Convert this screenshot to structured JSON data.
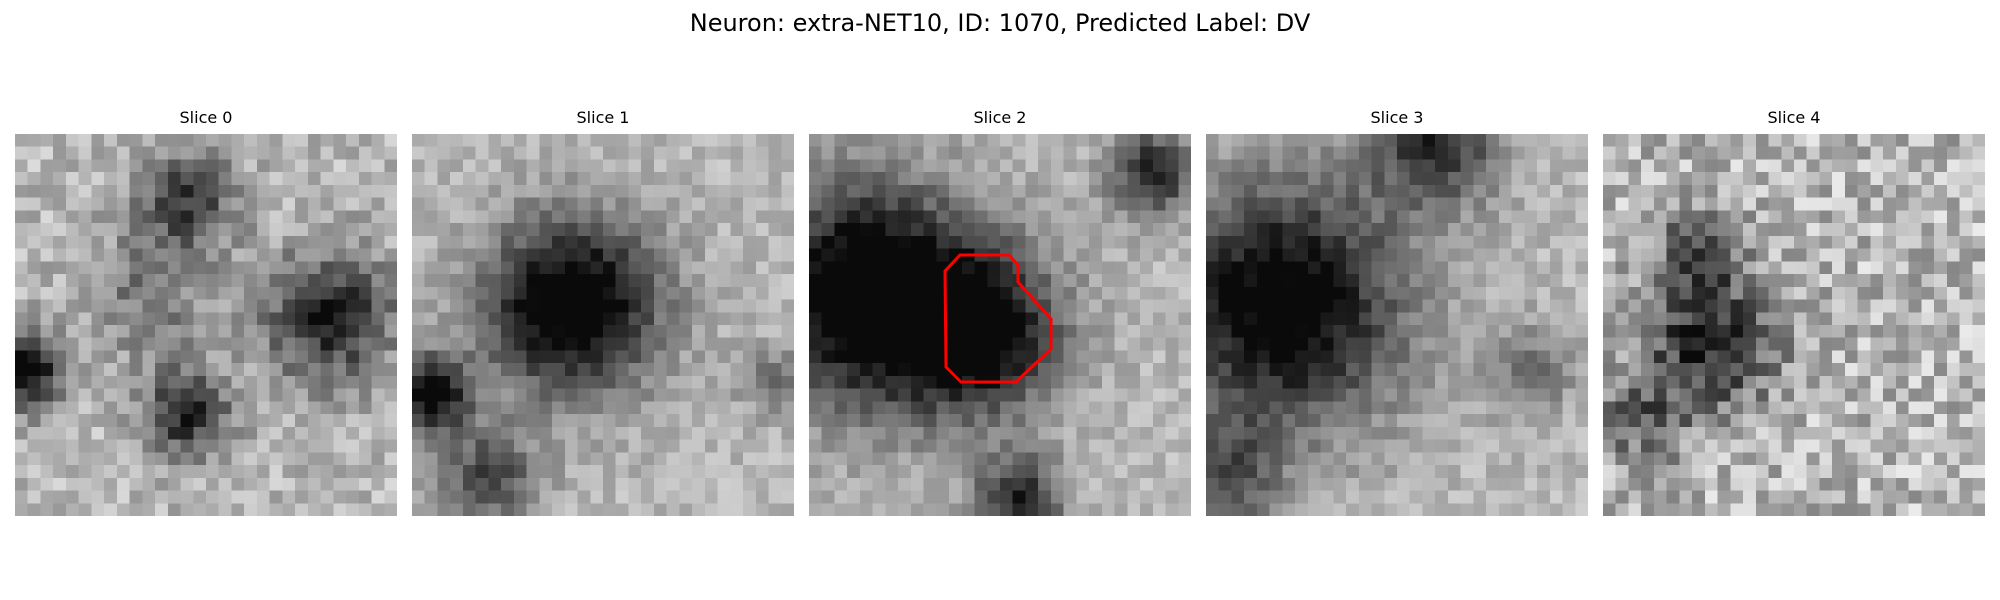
{
  "figure": {
    "title": "Neuron: extra-NET10, ID: 1070, Predicted Label: DV",
    "roi_color": "#ff0000"
  },
  "panels": [
    {
      "title": "Slice 0",
      "seed": 11,
      "blobs": [
        [
          0.45,
          0.17,
          0.09,
          0.5
        ],
        [
          0.82,
          0.48,
          0.12,
          0.6
        ],
        [
          0.03,
          0.62,
          0.07,
          0.75
        ],
        [
          0.45,
          0.73,
          0.08,
          0.6
        ],
        [
          0.35,
          0.42,
          0.12,
          0.25
        ]
      ],
      "noise": 0.14
    },
    {
      "title": "Slice 1",
      "seed": 23,
      "blobs": [
        [
          0.42,
          0.45,
          0.16,
          0.85
        ],
        [
          0.05,
          0.68,
          0.07,
          0.75
        ],
        [
          0.2,
          0.9,
          0.09,
          0.45
        ],
        [
          0.95,
          0.65,
          0.06,
          0.3
        ]
      ],
      "noise": 0.1
    },
    {
      "title": "Slice 2",
      "seed": 37,
      "blobs": [
        [
          0.15,
          0.42,
          0.2,
          0.9
        ],
        [
          0.45,
          0.52,
          0.15,
          0.7
        ],
        [
          0.9,
          0.1,
          0.08,
          0.6
        ],
        [
          0.55,
          0.96,
          0.08,
          0.6
        ]
      ],
      "noise": 0.1
    },
    {
      "title": "Slice 3",
      "seed": 51,
      "blobs": [
        [
          0.2,
          0.45,
          0.22,
          0.8
        ],
        [
          0.6,
          0.02,
          0.12,
          0.55
        ],
        [
          0.05,
          0.9,
          0.1,
          0.4
        ],
        [
          0.85,
          0.62,
          0.08,
          0.3
        ]
      ],
      "noise": 0.1
    },
    {
      "title": "Slice 4",
      "seed": 67,
      "blobs": [
        [
          0.28,
          0.55,
          0.12,
          0.6
        ],
        [
          0.25,
          0.3,
          0.08,
          0.4
        ],
        [
          0.1,
          0.75,
          0.08,
          0.35
        ]
      ],
      "noise": 0.2
    }
  ]
}
